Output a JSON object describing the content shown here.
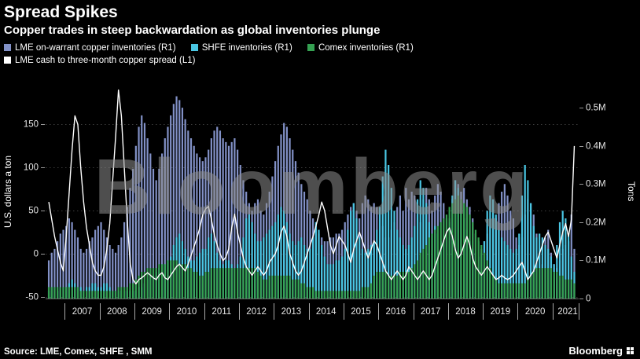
{
  "header": {
    "title": "Spread Spikes",
    "subtitle": "Copper trades in steep backwardation as global inventories plunge"
  },
  "legend": {
    "row1": [
      {
        "label": "LME on-warrant copper inventories (R1)",
        "color": "#8291c7"
      },
      {
        "label": "SHFE inventories (R1)",
        "color": "#4ac6e3"
      },
      {
        "label": "Comex inventories (R1)",
        "color": "#35a152"
      }
    ],
    "row2": [
      {
        "label": "LME cash to three-month copper spread (L1)",
        "color": "#ffffff"
      }
    ]
  },
  "watermark": "Bloomberg",
  "footer": {
    "source": "Source: LME, Comex, SHFE , SMM",
    "brand": "Bloomberg"
  },
  "chart_data": {
    "type": "bar+line",
    "start": "2006-07",
    "frequency": "monthly",
    "left_axis": {
      "label": "U.S. dollars a ton",
      "ticks": [
        150,
        100,
        50,
        0,
        -50
      ],
      "tick_labels": [
        "150",
        "100",
        "50",
        "0",
        "-50"
      ],
      "range": [
        -52,
        196
      ],
      "grid": "dotted"
    },
    "right_axis": {
      "label": "Tons",
      "ticks": [
        0.5,
        0.4,
        0.3,
        0.2,
        0.1,
        0
      ],
      "tick_labels": [
        "0.5M",
        "0.4M",
        "0.3M",
        "0.2M",
        "0.1M",
        "0"
      ],
      "range": [
        0,
        0.56
      ]
    },
    "x_axis": {
      "year_labels": [
        "2007",
        "2008",
        "2009",
        "2010",
        "2011",
        "2012",
        "2013",
        "2014",
        "2015",
        "2016",
        "2017",
        "2018",
        "2019",
        "2020",
        "2021"
      ],
      "range": [
        2006.45,
        2021.75
      ]
    },
    "series": [
      {
        "name": "LME on-warrant copper inventories (R1)",
        "type": "bar",
        "axis": "right",
        "color": "#8291c7",
        "unit": "million tons",
        "values": [
          0.1,
          0.12,
          0.13,
          0.15,
          0.17,
          0.18,
          0.19,
          0.21,
          0.2,
          0.18,
          0.16,
          0.13,
          0.12,
          0.13,
          0.15,
          0.16,
          0.18,
          0.19,
          0.2,
          0.18,
          0.16,
          0.14,
          0.13,
          0.12,
          0.14,
          0.16,
          0.2,
          0.24,
          0.29,
          0.34,
          0.4,
          0.45,
          0.48,
          0.46,
          0.42,
          0.38,
          0.34,
          0.31,
          0.34,
          0.38,
          0.42,
          0.45,
          0.48,
          0.51,
          0.53,
          0.52,
          0.5,
          0.47,
          0.44,
          0.42,
          0.4,
          0.38,
          0.37,
          0.36,
          0.37,
          0.39,
          0.42,
          0.44,
          0.45,
          0.44,
          0.42,
          0.41,
          0.4,
          0.41,
          0.42,
          0.39,
          0.35,
          0.31,
          0.28,
          0.25,
          0.23,
          0.25,
          0.26,
          0.23,
          0.22,
          0.25,
          0.28,
          0.32,
          0.36,
          0.4,
          0.43,
          0.46,
          0.45,
          0.42,
          0.39,
          0.36,
          0.33,
          0.3,
          0.28,
          0.26,
          0.23,
          0.21,
          0.19,
          0.17,
          0.16,
          0.15,
          0.15,
          0.16,
          0.16,
          0.17,
          0.17,
          0.18,
          0.2,
          0.22,
          0.24,
          0.25,
          0.23,
          0.21,
          0.25,
          0.27,
          0.26,
          0.24,
          0.25,
          0.24,
          0.22,
          0.19,
          0.16,
          0.16,
          0.18,
          0.2,
          0.24,
          0.27,
          0.23,
          0.29,
          0.26,
          0.28,
          0.27,
          0.22,
          0.2,
          0.26,
          0.29,
          0.26,
          0.23,
          0.27,
          0.3,
          0.28,
          0.25,
          0.21,
          0.21,
          0.26,
          0.31,
          0.3,
          0.28,
          0.29,
          0.26,
          0.24,
          0.21,
          0.17,
          0.15,
          0.13,
          0.15,
          0.17,
          0.19,
          0.22,
          0.21,
          0.25,
          0.28,
          0.3,
          0.27,
          0.23,
          0.21,
          0.16,
          0.14,
          0.16,
          0.22,
          0.26,
          0.25,
          0.22,
          0.17,
          0.12,
          0.09,
          0.16,
          0.18,
          0.12,
          0.09,
          0.08,
          0.1,
          0.13,
          0.14,
          0.15,
          0.22,
          0.13
        ]
      },
      {
        "name": "SHFE inventories (R1)",
        "type": "bar",
        "axis": "right",
        "color": "#4ac6e3",
        "unit": "million tons",
        "values": [
          0.02,
          0.03,
          0.03,
          0.02,
          0.03,
          0.03,
          0.03,
          0.04,
          0.05,
          0.04,
          0.03,
          0.03,
          0.02,
          0.03,
          0.03,
          0.04,
          0.04,
          0.03,
          0.03,
          0.04,
          0.04,
          0.03,
          0.02,
          0.02,
          0.02,
          0.02,
          0.02,
          0.02,
          0.02,
          0.02,
          0.02,
          0.03,
          0.03,
          0.04,
          0.05,
          0.06,
          0.06,
          0.07,
          0.08,
          0.09,
          0.09,
          0.1,
          0.11,
          0.14,
          0.16,
          0.17,
          0.15,
          0.13,
          0.11,
          0.1,
          0.1,
          0.11,
          0.12,
          0.13,
          0.13,
          0.16,
          0.17,
          0.15,
          0.12,
          0.1,
          0.09,
          0.1,
          0.1,
          0.09,
          0.08,
          0.09,
          0.11,
          0.16,
          0.21,
          0.22,
          0.2,
          0.17,
          0.15,
          0.15,
          0.16,
          0.17,
          0.18,
          0.19,
          0.2,
          0.22,
          0.24,
          0.23,
          0.2,
          0.17,
          0.15,
          0.14,
          0.15,
          0.16,
          0.14,
          0.13,
          0.13,
          0.16,
          0.2,
          0.18,
          0.14,
          0.11,
          0.09,
          0.09,
          0.09,
          0.1,
          0.1,
          0.11,
          0.13,
          0.18,
          0.23,
          0.25,
          0.21,
          0.16,
          0.13,
          0.12,
          0.13,
          0.14,
          0.15,
          0.18,
          0.24,
          0.32,
          0.39,
          0.35,
          0.29,
          0.23,
          0.18,
          0.16,
          0.14,
          0.13,
          0.14,
          0.16,
          0.19,
          0.26,
          0.31,
          0.29,
          0.25,
          0.2,
          0.17,
          0.19,
          0.17,
          0.15,
          0.14,
          0.16,
          0.2,
          0.27,
          0.31,
          0.29,
          0.25,
          0.21,
          0.18,
          0.15,
          0.13,
          0.12,
          0.11,
          0.12,
          0.15,
          0.23,
          0.27,
          0.26,
          0.22,
          0.18,
          0.16,
          0.15,
          0.14,
          0.13,
          0.12,
          0.13,
          0.17,
          0.27,
          0.35,
          0.31,
          0.25,
          0.19,
          0.16,
          0.17,
          0.16,
          0.14,
          0.13,
          0.11,
          0.09,
          0.14,
          0.2,
          0.23,
          0.21,
          0.17,
          0.11,
          0.07
        ]
      },
      {
        "name": "Comex inventories (R1)",
        "type": "bar",
        "axis": "right",
        "color": "#35a152",
        "unit": "million tons",
        "values": [
          0.03,
          0.03,
          0.03,
          0.03,
          0.03,
          0.03,
          0.03,
          0.03,
          0.03,
          0.03,
          0.03,
          0.02,
          0.02,
          0.02,
          0.02,
          0.02,
          0.02,
          0.02,
          0.02,
          0.02,
          0.02,
          0.02,
          0.02,
          0.02,
          0.03,
          0.03,
          0.03,
          0.03,
          0.04,
          0.04,
          0.05,
          0.06,
          0.07,
          0.07,
          0.08,
          0.08,
          0.08,
          0.08,
          0.09,
          0.09,
          0.09,
          0.1,
          0.1,
          0.1,
          0.1,
          0.09,
          0.09,
          0.09,
          0.08,
          0.08,
          0.07,
          0.07,
          0.06,
          0.06,
          0.07,
          0.07,
          0.08,
          0.08,
          0.08,
          0.08,
          0.08,
          0.08,
          0.08,
          0.08,
          0.08,
          0.08,
          0.08,
          0.08,
          0.08,
          0.08,
          0.08,
          0.08,
          0.07,
          0.06,
          0.05,
          0.05,
          0.06,
          0.06,
          0.06,
          0.06,
          0.06,
          0.06,
          0.06,
          0.06,
          0.05,
          0.05,
          0.05,
          0.04,
          0.04,
          0.03,
          0.03,
          0.03,
          0.02,
          0.02,
          0.02,
          0.02,
          0.02,
          0.02,
          0.02,
          0.02,
          0.02,
          0.02,
          0.02,
          0.02,
          0.02,
          0.02,
          0.02,
          0.02,
          0.03,
          0.03,
          0.03,
          0.04,
          0.06,
          0.07,
          0.07,
          0.07,
          0.07,
          0.06,
          0.06,
          0.06,
          0.06,
          0.07,
          0.07,
          0.07,
          0.07,
          0.08,
          0.09,
          0.1,
          0.12,
          0.13,
          0.14,
          0.16,
          0.17,
          0.18,
          0.19,
          0.2,
          0.21,
          0.22,
          0.24,
          0.25,
          0.26,
          0.27,
          0.26,
          0.25,
          0.24,
          0.22,
          0.2,
          0.18,
          0.16,
          0.14,
          0.12,
          0.1,
          0.08,
          0.06,
          0.05,
          0.04,
          0.04,
          0.04,
          0.04,
          0.04,
          0.04,
          0.04,
          0.04,
          0.04,
          0.04,
          0.05,
          0.06,
          0.07,
          0.08,
          0.08,
          0.08,
          0.08,
          0.08,
          0.08,
          0.07,
          0.07,
          0.06,
          0.06,
          0.05,
          0.05,
          0.05,
          0.04
        ]
      },
      {
        "name": "LME cash to three-month copper spread (L1)",
        "type": "line",
        "axis": "left",
        "color": "#ffffff",
        "unit": "U.S. dollars a ton",
        "values": [
          60,
          40,
          20,
          5,
          -10,
          -20,
          20,
          70,
          120,
          160,
          150,
          100,
          60,
          30,
          10,
          -10,
          -20,
          -25,
          -25,
          -15,
          5,
          35,
          85,
          135,
          190,
          160,
          100,
          40,
          -10,
          -30,
          -35,
          -30,
          -28,
          -25,
          -22,
          -25,
          -28,
          -30,
          -25,
          -22,
          -28,
          -30,
          -25,
          -20,
          -15,
          -12,
          -16,
          -20,
          -12,
          -2,
          8,
          18,
          30,
          45,
          52,
          55,
          40,
          22,
          10,
          0,
          -8,
          -4,
          6,
          30,
          46,
          25,
          10,
          -5,
          -15,
          -20,
          -25,
          -20,
          -15,
          -20,
          -25,
          -20,
          -10,
          -5,
          0,
          10,
          25,
          32,
          20,
          0,
          -10,
          -20,
          -25,
          -20,
          -10,
          0,
          10,
          20,
          32,
          45,
          60,
          50,
          30,
          10,
          0,
          10,
          20,
          15,
          10,
          0,
          -10,
          5,
          15,
          25,
          15,
          5,
          -5,
          5,
          15,
          10,
          0,
          -10,
          -20,
          -25,
          -30,
          -25,
          -20,
          -25,
          -30,
          -25,
          -15,
          -20,
          -25,
          -30,
          -25,
          -20,
          -25,
          -30,
          -25,
          -15,
          -5,
          5,
          15,
          25,
          30,
          20,
          5,
          -5,
          0,
          10,
          20,
          10,
          -5,
          -15,
          -20,
          -25,
          -20,
          -15,
          -20,
          -25,
          -30,
          -28,
          -25,
          -28,
          -30,
          -28,
          -25,
          -20,
          -15,
          -10,
          -20,
          -30,
          -25,
          -20,
          -10,
          0,
          10,
          20,
          25,
          15,
          5,
          -5,
          10,
          25,
          35,
          20,
          40,
          125
        ]
      }
    ]
  }
}
